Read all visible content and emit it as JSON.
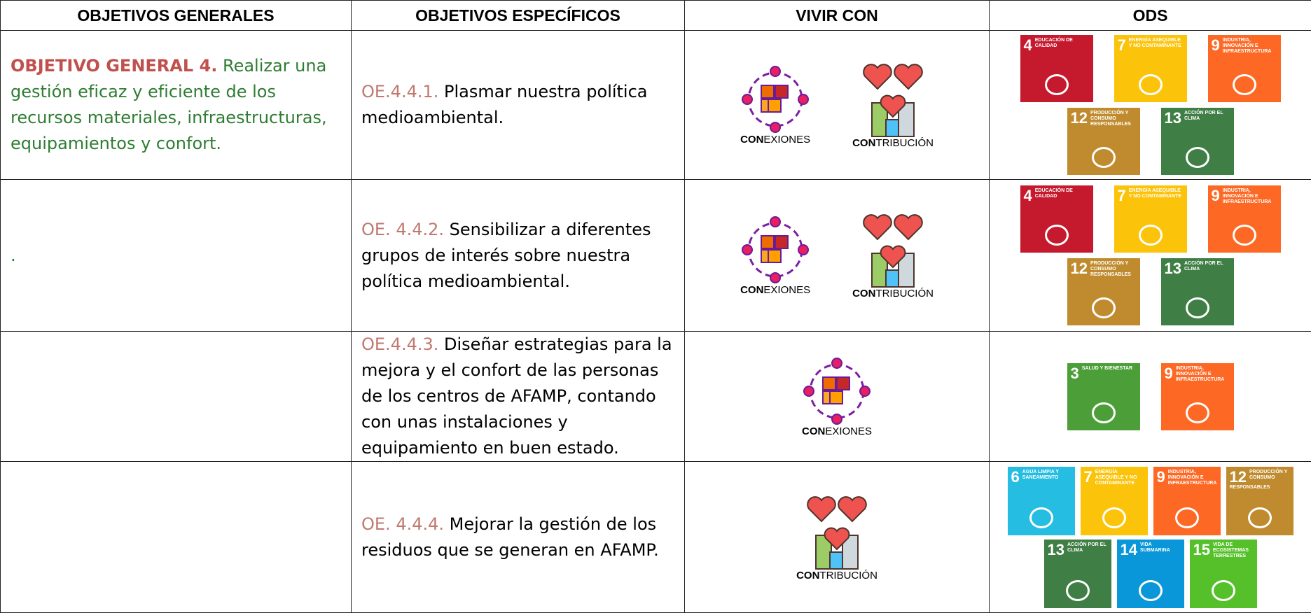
{
  "header": [
    "OBJETIVOS GENERALES",
    "OBJETIVOS ESPECÍFICOS",
    "VIVIR CON",
    "ODS"
  ],
  "rows": [
    {
      "general": {
        "label": "OBJETIVO GENERAL 4.",
        "text": "Realizar una gestión eficaz y eficiente de los recursos materiales, infraestructuras, equipamientos y confort."
      },
      "specific": {
        "code": "OE.4.4.1.",
        "text": "Plasmar nuestra política medioambiental."
      },
      "vivir_con": {
        "conexiones": {
          "bold": "CON",
          "rest": "EXIONES"
        },
        "contribucion": {
          "bold": "CON",
          "rest": "TRIBUCIÓN"
        }
      },
      "ods": [
        {
          "number": "4",
          "label": "EDUCACIÓN DE CALIDAD",
          "color": "#c5192d"
        },
        {
          "number": "7",
          "label": "ENERGÍA ASEQUIBLE Y NO CONTAMINANTE",
          "color": "#fcc30b"
        },
        {
          "number": "9",
          "label": "INDUSTRIA, INNOVACIÓN E INFRAESTRUCTURA",
          "color": "#fd6925"
        },
        {
          "number": "12",
          "label": "PRODUCCIÓN Y CONSUMO RESPONSABLES",
          "color": "#bf8b2e"
        },
        {
          "number": "13",
          "label": "ACCIÓN POR EL CLIMA",
          "color": "#3f7e44"
        }
      ]
    },
    {
      "general": {
        "text": "."
      },
      "specific": {
        "code": "OE. 4.4.2.",
        "text": "Sensibilizar a diferentes grupos de interés sobre nuestra política medioambiental."
      },
      "vivir_con": {
        "conexiones": {
          "bold": "CON",
          "rest": "EXIONES"
        },
        "contribucion": {
          "bold": "CON",
          "rest": "TRIBUCIÓN"
        }
      },
      "ods": [
        {
          "number": "4",
          "label": "EDUCACIÓN DE CALIDAD",
          "color": "#c5192d"
        },
        {
          "number": "7",
          "label": "ENERGÍA ASEQUIBLE Y NO CONTAMINANTE",
          "color": "#fcc30b"
        },
        {
          "number": "9",
          "label": "INDUSTRIA, INNOVACIÓN E INFRAESTRUCTURA",
          "color": "#fd6925"
        },
        {
          "number": "12",
          "label": "PRODUCCIÓN Y CONSUMO RESPONSABLES",
          "color": "#bf8b2e"
        },
        {
          "number": "13",
          "label": "ACCIÓN POR EL CLIMA",
          "color": "#3f7e44"
        }
      ]
    },
    {
      "specific": {
        "code": "OE.4.4.3.",
        "text": "Diseñar estrategias para la mejora y el confort de las personas de los centros de AFAMP, contando con unas instalaciones y equipamiento en buen estado."
      },
      "vivir_con": {
        "conexiones": {
          "bold": "CON",
          "rest": "EXIONES"
        }
      },
      "ods": [
        {
          "number": "3",
          "label": "SALUD Y BIENESTAR",
          "color": "#4c9f38"
        },
        {
          "number": "9",
          "label": "INDUSTRIA, INNOVACIÓN E INFRAESTRUCTURA",
          "color": "#fd6925"
        }
      ]
    },
    {
      "specific": {
        "code": "OE. 4.4.4.",
        "text": "Mejorar la gestión de los residuos que se generan en AFAMP."
      },
      "vivir_con": {
        "contribucion": {
          "bold": "CON",
          "rest": "TRIBUCIÓN"
        }
      },
      "ods": [
        {
          "number": "6",
          "label": "AGUA LIMPIA Y SANEAMIENTO",
          "color": "#26bde2"
        },
        {
          "number": "7",
          "label": "ENERGÍA ASEQUIBLE Y NO CONTAMINANTE",
          "color": "#fcc30b"
        },
        {
          "number": "9",
          "label": "INDUSTRIA, INNOVACIÓN E INFRAESTRUCTURA",
          "color": "#fd6925"
        },
        {
          "number": "12",
          "label": "PRODUCCIÓN Y CONSUMO RESPONSABLES",
          "color": "#bf8b2e"
        },
        {
          "number": "13",
          "label": "ACCIÓN POR EL CLIMA",
          "color": "#3f7e44"
        },
        {
          "number": "14",
          "label": "VIDA SUBMARINA",
          "color": "#0a97d9"
        },
        {
          "number": "15",
          "label": "VIDA DE ECOSISTEMAS TERRESTRES",
          "color": "#56c02b"
        }
      ]
    }
  ]
}
